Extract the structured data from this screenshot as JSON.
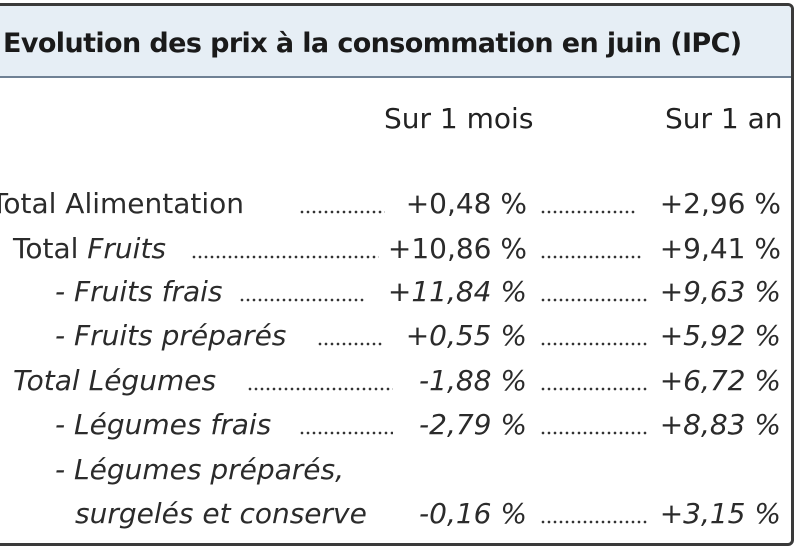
{
  "title": "Evolution des prix à la consommation en juin (IPC)",
  "columns": [
    "Sur 1 mois",
    "Sur 1 an"
  ],
  "rows": [
    {
      "label": "Total Alimentation",
      "month": "+0,48 %",
      "year": "+2,96 %"
    },
    {
      "label_prefix": "Total ",
      "label_italic": "Fruits",
      "month": "+10,86 %",
      "year": "+9,41 %"
    },
    {
      "label": "- Fruits frais",
      "month": "+11,84 %",
      "year": "+9,63 %"
    },
    {
      "label": "- Fruits préparés",
      "month": "+0,55 %",
      "year": "+5,92 %"
    },
    {
      "label": "Total Légumes",
      "month": "-1,88 %",
      "year": "+6,72 %"
    },
    {
      "label": "- Légumes frais",
      "month": "-2,79 %",
      "year": "+8,83 %"
    },
    {
      "label_line1": "- Légumes préparés,",
      "label_line2": "surgelés et conserve",
      "month": "-0,16 %",
      "year": "+3,15 %"
    }
  ]
}
